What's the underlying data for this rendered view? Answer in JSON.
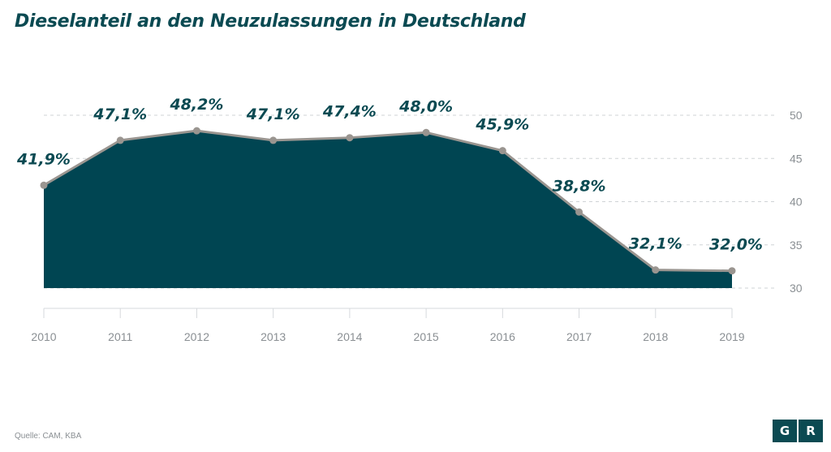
{
  "page": {
    "title": "Dieselanteil an den Neuzulassungen in Deutschland",
    "source": "Quelle: CAM, KBA",
    "logo": {
      "left": "G",
      "right": "R"
    }
  },
  "colors": {
    "area": "#004552",
    "line": "#9a9590",
    "label": "#0b4a52",
    "grid": "#cfd3d6",
    "axis_text": "#8a8f93"
  },
  "chart_data": {
    "type": "area",
    "x": [
      "2010",
      "2011",
      "2012",
      "2013",
      "2014",
      "2015",
      "2016",
      "2017",
      "2018",
      "2019"
    ],
    "values": [
      41.9,
      47.1,
      48.2,
      47.1,
      47.4,
      48.0,
      45.9,
      38.8,
      32.1,
      32.0
    ],
    "data_labels": [
      "41,9%",
      "47,1%",
      "48,2%",
      "47,1%",
      "47,4%",
      "48,0%",
      "45,9%",
      "38,8%",
      "32,1%",
      "32,0%"
    ],
    "y_ticks": [
      30,
      35,
      40,
      45,
      50
    ],
    "y_tick_labels": [
      "30",
      "35",
      "40",
      "45",
      "50"
    ],
    "ylim": [
      30,
      50
    ],
    "y_axis_side": "right",
    "grid": "dashed horizontal"
  }
}
